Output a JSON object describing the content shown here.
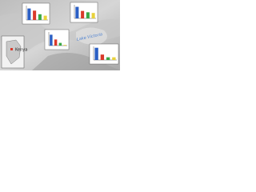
{
  "map": {
    "labels": {
      "country": "Kenya",
      "lake": "Lake Victoria"
    },
    "insets": [
      {
        "values": [
          80,
          65,
          40,
          30
        ],
        "colors": [
          "#2b5fc4",
          "#d93a2b",
          "#3aa845",
          "#e8d23a"
        ],
        "ylim": [
          0,
          100
        ]
      },
      {
        "values": [
          85,
          55,
          45,
          40
        ],
        "colors": [
          "#2b5fc4",
          "#d93a2b",
          "#3aa845",
          "#e8d23a"
        ],
        "ylim": [
          0,
          100
        ]
      },
      {
        "values": [
          80,
          45,
          20,
          5
        ],
        "colors": [
          "#2b5fc4",
          "#d93a2b",
          "#3aa845",
          "#e8d23a"
        ],
        "ylim": [
          0,
          100
        ]
      },
      {
        "values": [
          90,
          40,
          20,
          20
        ],
        "colors": [
          "#2b5fc4",
          "#d93a2b",
          "#3aa845",
          "#e8d23a"
        ],
        "ylim": [
          0,
          100
        ]
      }
    ]
  }
}
